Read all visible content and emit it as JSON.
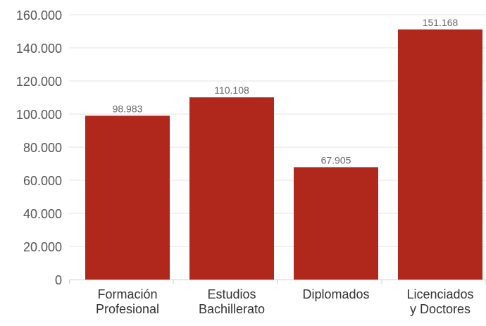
{
  "chart_data": {
    "type": "bar",
    "title": "",
    "xlabel": "",
    "ylabel": "",
    "categories": [
      [
        "Formación",
        "Profesional"
      ],
      [
        "Estudios",
        "Bachillerato"
      ],
      [
        "Diplomados"
      ],
      [
        "Licenciados",
        "y Doctores"
      ]
    ],
    "values": [
      98983,
      110108,
      67905,
      151168
    ],
    "value_labels": [
      "98.983",
      "110.108",
      "67.905",
      "151.168"
    ],
    "ylim": [
      0,
      160000
    ],
    "yticks": [
      0,
      20000,
      40000,
      60000,
      80000,
      100000,
      120000,
      140000,
      160000
    ],
    "ytick_labels": [
      "0",
      "20.000",
      "40.000",
      "60.000",
      "80.000",
      "100.000",
      "120.000",
      "140.000",
      "160.000"
    ],
    "grid": true,
    "bar_color": "#b0281c",
    "grid_color": "#e3e3e3",
    "axis_color": "#cccccc"
  }
}
